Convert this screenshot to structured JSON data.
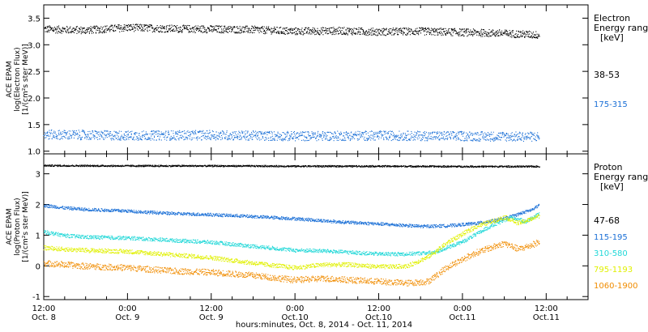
{
  "chart_data": [
    {
      "type": "scatter",
      "panel": "electron",
      "ylabel_lines": [
        "ACE EPAM",
        "log(Electron Flux)",
        "[1/(cm²s ster MeV)]"
      ],
      "ylim": [
        0.95,
        3.75
      ],
      "yticks": [
        1.0,
        1.5,
        2.0,
        2.5,
        3.0,
        3.5
      ],
      "ytick_labels": [
        "1.0",
        "1.5",
        "2.0",
        "2.5",
        "3.0",
        "3.5"
      ],
      "legend_title": [
        "Electron",
        "Energy ranges",
        "[keV]"
      ],
      "series": [
        {
          "name": "38-53",
          "color": "#000000",
          "base": 3.28,
          "scatter": 0.07,
          "x": [
            0,
            6,
            12,
            18,
            24,
            30,
            36,
            42,
            48,
            54,
            60,
            66,
            71
          ],
          "y": [
            3.3,
            3.28,
            3.33,
            3.31,
            3.3,
            3.29,
            3.26,
            3.27,
            3.25,
            3.26,
            3.24,
            3.22,
            3.19
          ]
        },
        {
          "name": "175-315",
          "color": "#1a6fd6",
          "base": 1.3,
          "scatter": 0.09,
          "x": [
            0,
            12,
            24,
            36,
            48,
            60,
            71
          ],
          "y": [
            1.32,
            1.3,
            1.31,
            1.29,
            1.3,
            1.29,
            1.28
          ]
        }
      ]
    },
    {
      "type": "scatter",
      "panel": "proton",
      "ylabel_lines": [
        "ACE EPAM",
        "log(Proton Flux)",
        "[1/(cm²s ster MeV)]"
      ],
      "ylim": [
        -1.1,
        3.65
      ],
      "yticks": [
        -1,
        0,
        1,
        2,
        3
      ],
      "ytick_labels": [
        "-1",
        "0",
        "1",
        "2",
        "3"
      ],
      "legend_title": [
        "Proton",
        "Energy ranges",
        "[keV]"
      ],
      "series": [
        {
          "name": "47-68",
          "color": "#000000",
          "base": 0,
          "scatter": 0.025,
          "x": [
            0,
            12,
            24,
            36,
            48,
            60,
            71
          ],
          "y": [
            3.28,
            3.27,
            3.27,
            3.26,
            3.26,
            3.25,
            3.25
          ]
        },
        {
          "name": "115-195",
          "color": "#1a6fd6",
          "base": 0,
          "scatter": 0.05,
          "x": [
            0,
            3,
            6,
            12,
            18,
            24,
            30,
            36,
            42,
            48,
            54,
            58,
            62,
            66,
            68,
            70,
            71
          ],
          "y": [
            1.98,
            1.9,
            1.85,
            1.8,
            1.72,
            1.68,
            1.62,
            1.55,
            1.45,
            1.38,
            1.3,
            1.32,
            1.4,
            1.55,
            1.7,
            1.85,
            2.0
          ]
        },
        {
          "name": "310-580",
          "color": "#22d8d8",
          "base": 0,
          "scatter": 0.06,
          "x": [
            0,
            3,
            6,
            12,
            18,
            24,
            30,
            36,
            40,
            44,
            48,
            52,
            56,
            60,
            64,
            67,
            69,
            71
          ],
          "y": [
            1.12,
            1.0,
            0.95,
            0.92,
            0.85,
            0.78,
            0.65,
            0.52,
            0.5,
            0.45,
            0.4,
            0.4,
            0.45,
            0.8,
            1.3,
            1.6,
            1.45,
            1.7
          ]
        },
        {
          "name": "795-1193",
          "color": "#e0f000",
          "base": 0,
          "scatter": 0.07,
          "x": [
            0,
            3,
            6,
            12,
            18,
            24,
            30,
            36,
            40,
            44,
            48,
            52,
            55,
            58,
            62,
            66,
            68,
            70,
            71
          ],
          "y": [
            0.6,
            0.55,
            0.52,
            0.48,
            0.38,
            0.28,
            0.1,
            -0.05,
            0.05,
            0.05,
            -0.02,
            0.0,
            0.3,
            0.8,
            1.3,
            1.6,
            1.4,
            1.55,
            1.65
          ]
        },
        {
          "name": "1060-1900",
          "color": "#f08c00",
          "base": 0,
          "scatter": 0.1,
          "x": [
            0,
            3,
            6,
            12,
            18,
            24,
            30,
            36,
            40,
            44,
            48,
            52,
            55,
            58,
            62,
            66,
            68,
            70,
            71
          ],
          "y": [
            0.1,
            0.05,
            0.0,
            -0.05,
            -0.15,
            -0.2,
            -0.3,
            -0.45,
            -0.4,
            -0.45,
            -0.5,
            -0.55,
            -0.5,
            0.0,
            0.45,
            0.75,
            0.55,
            0.7,
            0.8
          ]
        }
      ]
    }
  ],
  "x_axis": {
    "xlim": [
      0,
      78
    ],
    "major_ticks": [
      0,
      12,
      24,
      36,
      48,
      60,
      72
    ],
    "tick_labels_top": [
      "12:00",
      "0:00",
      "12:00",
      "0:00",
      "12:00",
      "0:00",
      "12:00"
    ],
    "tick_labels_bottom": [
      "Oct. 8",
      "Oct. 9",
      "Oct. 9",
      "Oct.10",
      "Oct.10",
      "Oct.11",
      "Oct.11"
    ],
    "minor_step": 3,
    "xlabel": "hours:minutes, Oct.  8, 2014 - Oct. 11, 2014"
  }
}
